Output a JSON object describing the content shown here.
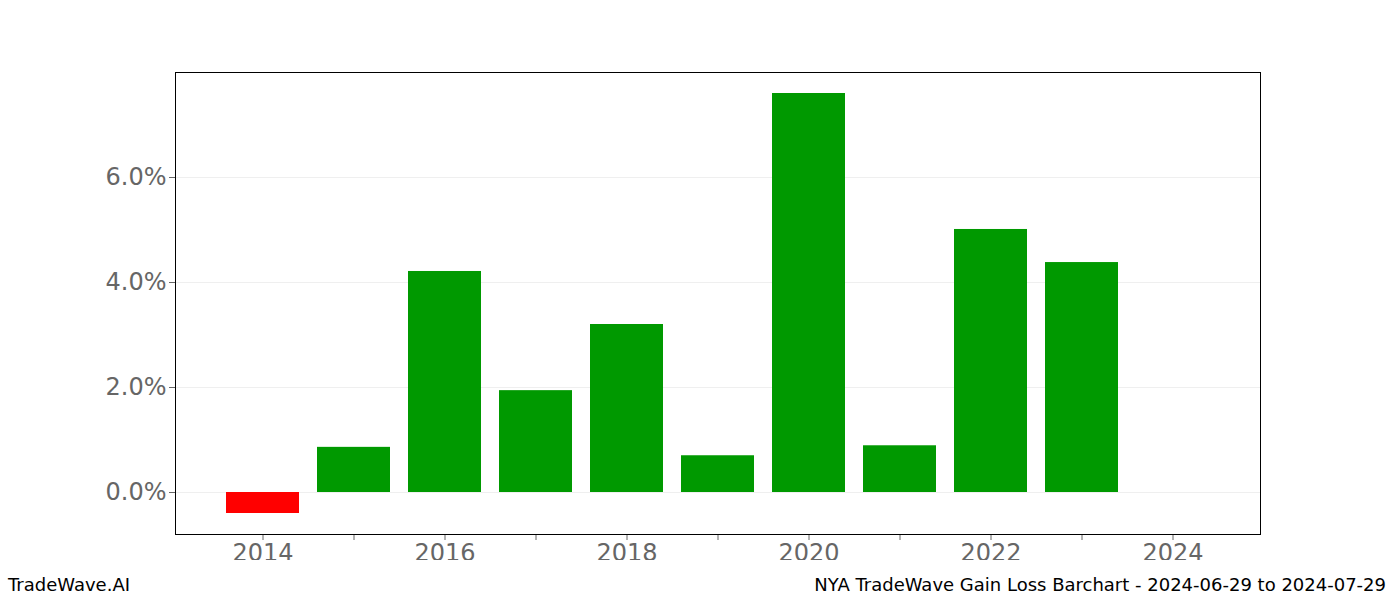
{
  "chart_data": {
    "type": "bar",
    "title": "NYA TradeWave Gain Loss Barchart - 2024-06-29 to 2024-07-29",
    "source": "TradeWave.AI",
    "categories": [
      "2014",
      null,
      "2016",
      null,
      "2018",
      null,
      "2020",
      null,
      "2022",
      null,
      "2024"
    ],
    "values": [
      -0.4,
      0.86,
      4.21,
      1.94,
      3.2,
      0.7,
      7.6,
      0.89,
      5.01,
      4.38,
      null
    ],
    "colors": [
      "#ff0000",
      "#009900",
      "#009900",
      "#009900",
      "#009900",
      "#009900",
      "#009900",
      "#009900",
      "#009900",
      "#009900",
      "#009900"
    ],
    "ylim": [
      -0.8,
      8.0
    ],
    "yticks": [
      {
        "value": 0,
        "label": "0.0%"
      },
      {
        "value": 2,
        "label": "2.0%"
      },
      {
        "value": 4,
        "label": "4.0%"
      },
      {
        "value": 6,
        "label": "6.0%"
      }
    ],
    "grid": true
  }
}
